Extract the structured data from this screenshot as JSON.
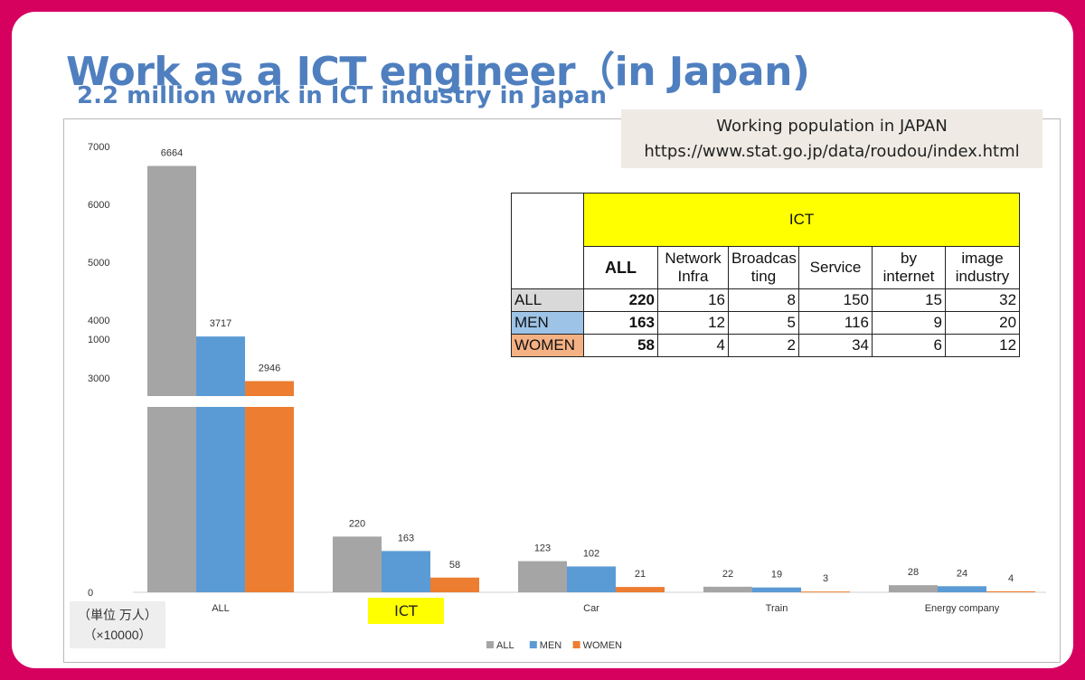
{
  "slide": {
    "title": "Work as a ICT engineer（in Japan)",
    "subtitle": "2.2 million work in ICT industry in Japan"
  },
  "source": {
    "line1": "Working population in JAPAN",
    "line2": "https://www.stat.go.jp/data/roudou/index.html"
  },
  "unit_note": {
    "line1": "（単位 万人）",
    "line2": "（×10000）"
  },
  "chart_data": {
    "type": "bar",
    "categories": [
      "ALL",
      "ICT",
      "Car",
      "Train",
      "Energy company"
    ],
    "highlighted_category": "ICT",
    "series": [
      {
        "name": "ALL",
        "color": "#a5a5a5",
        "values": [
          6664,
          220,
          123,
          22,
          28
        ]
      },
      {
        "name": "MEN",
        "color": "#5b9bd5",
        "values": [
          3717,
          163,
          102,
          19,
          24
        ]
      },
      {
        "name": "WOMEN",
        "color": "#ed7d31",
        "values": [
          2946,
          58,
          21,
          3,
          4
        ]
      }
    ],
    "y_ticks": [
      "7000",
      "6000",
      "5000",
      "4000",
      "3000",
      "1000",
      "0"
    ],
    "axis_break": "between 3000 and 1000; ALL-category bars are cut by a white gap",
    "legend_position": "bottom",
    "grid": false
  },
  "table": {
    "group_header": "ICT",
    "columns": [
      "ALL",
      "Network Infra",
      "Broadcasting",
      "Service",
      "by internet",
      "image industry"
    ],
    "column_display": [
      [
        "ALL"
      ],
      [
        "Network",
        "Infra"
      ],
      [
        "Broadcas",
        "ting"
      ],
      [
        "Service"
      ],
      [
        "by",
        "internet"
      ],
      [
        "image",
        "industry"
      ]
    ],
    "rows": [
      {
        "label": "ALL",
        "color": "#d9d9d9",
        "values": [
          "220",
          "16",
          "8",
          "150",
          "15",
          "32"
        ]
      },
      {
        "label": "MEN",
        "color": "#9dc3e6",
        "values": [
          "163",
          "12",
          "5",
          "116",
          "9",
          "20"
        ]
      },
      {
        "label": "WOMEN",
        "color": "#f4b183",
        "values": [
          "58",
          "4",
          "2",
          "34",
          "6",
          "12"
        ]
      }
    ]
  },
  "colors": {
    "border": "#d6005f",
    "title": "#4f7fbf",
    "highlight": "#ffff00"
  }
}
